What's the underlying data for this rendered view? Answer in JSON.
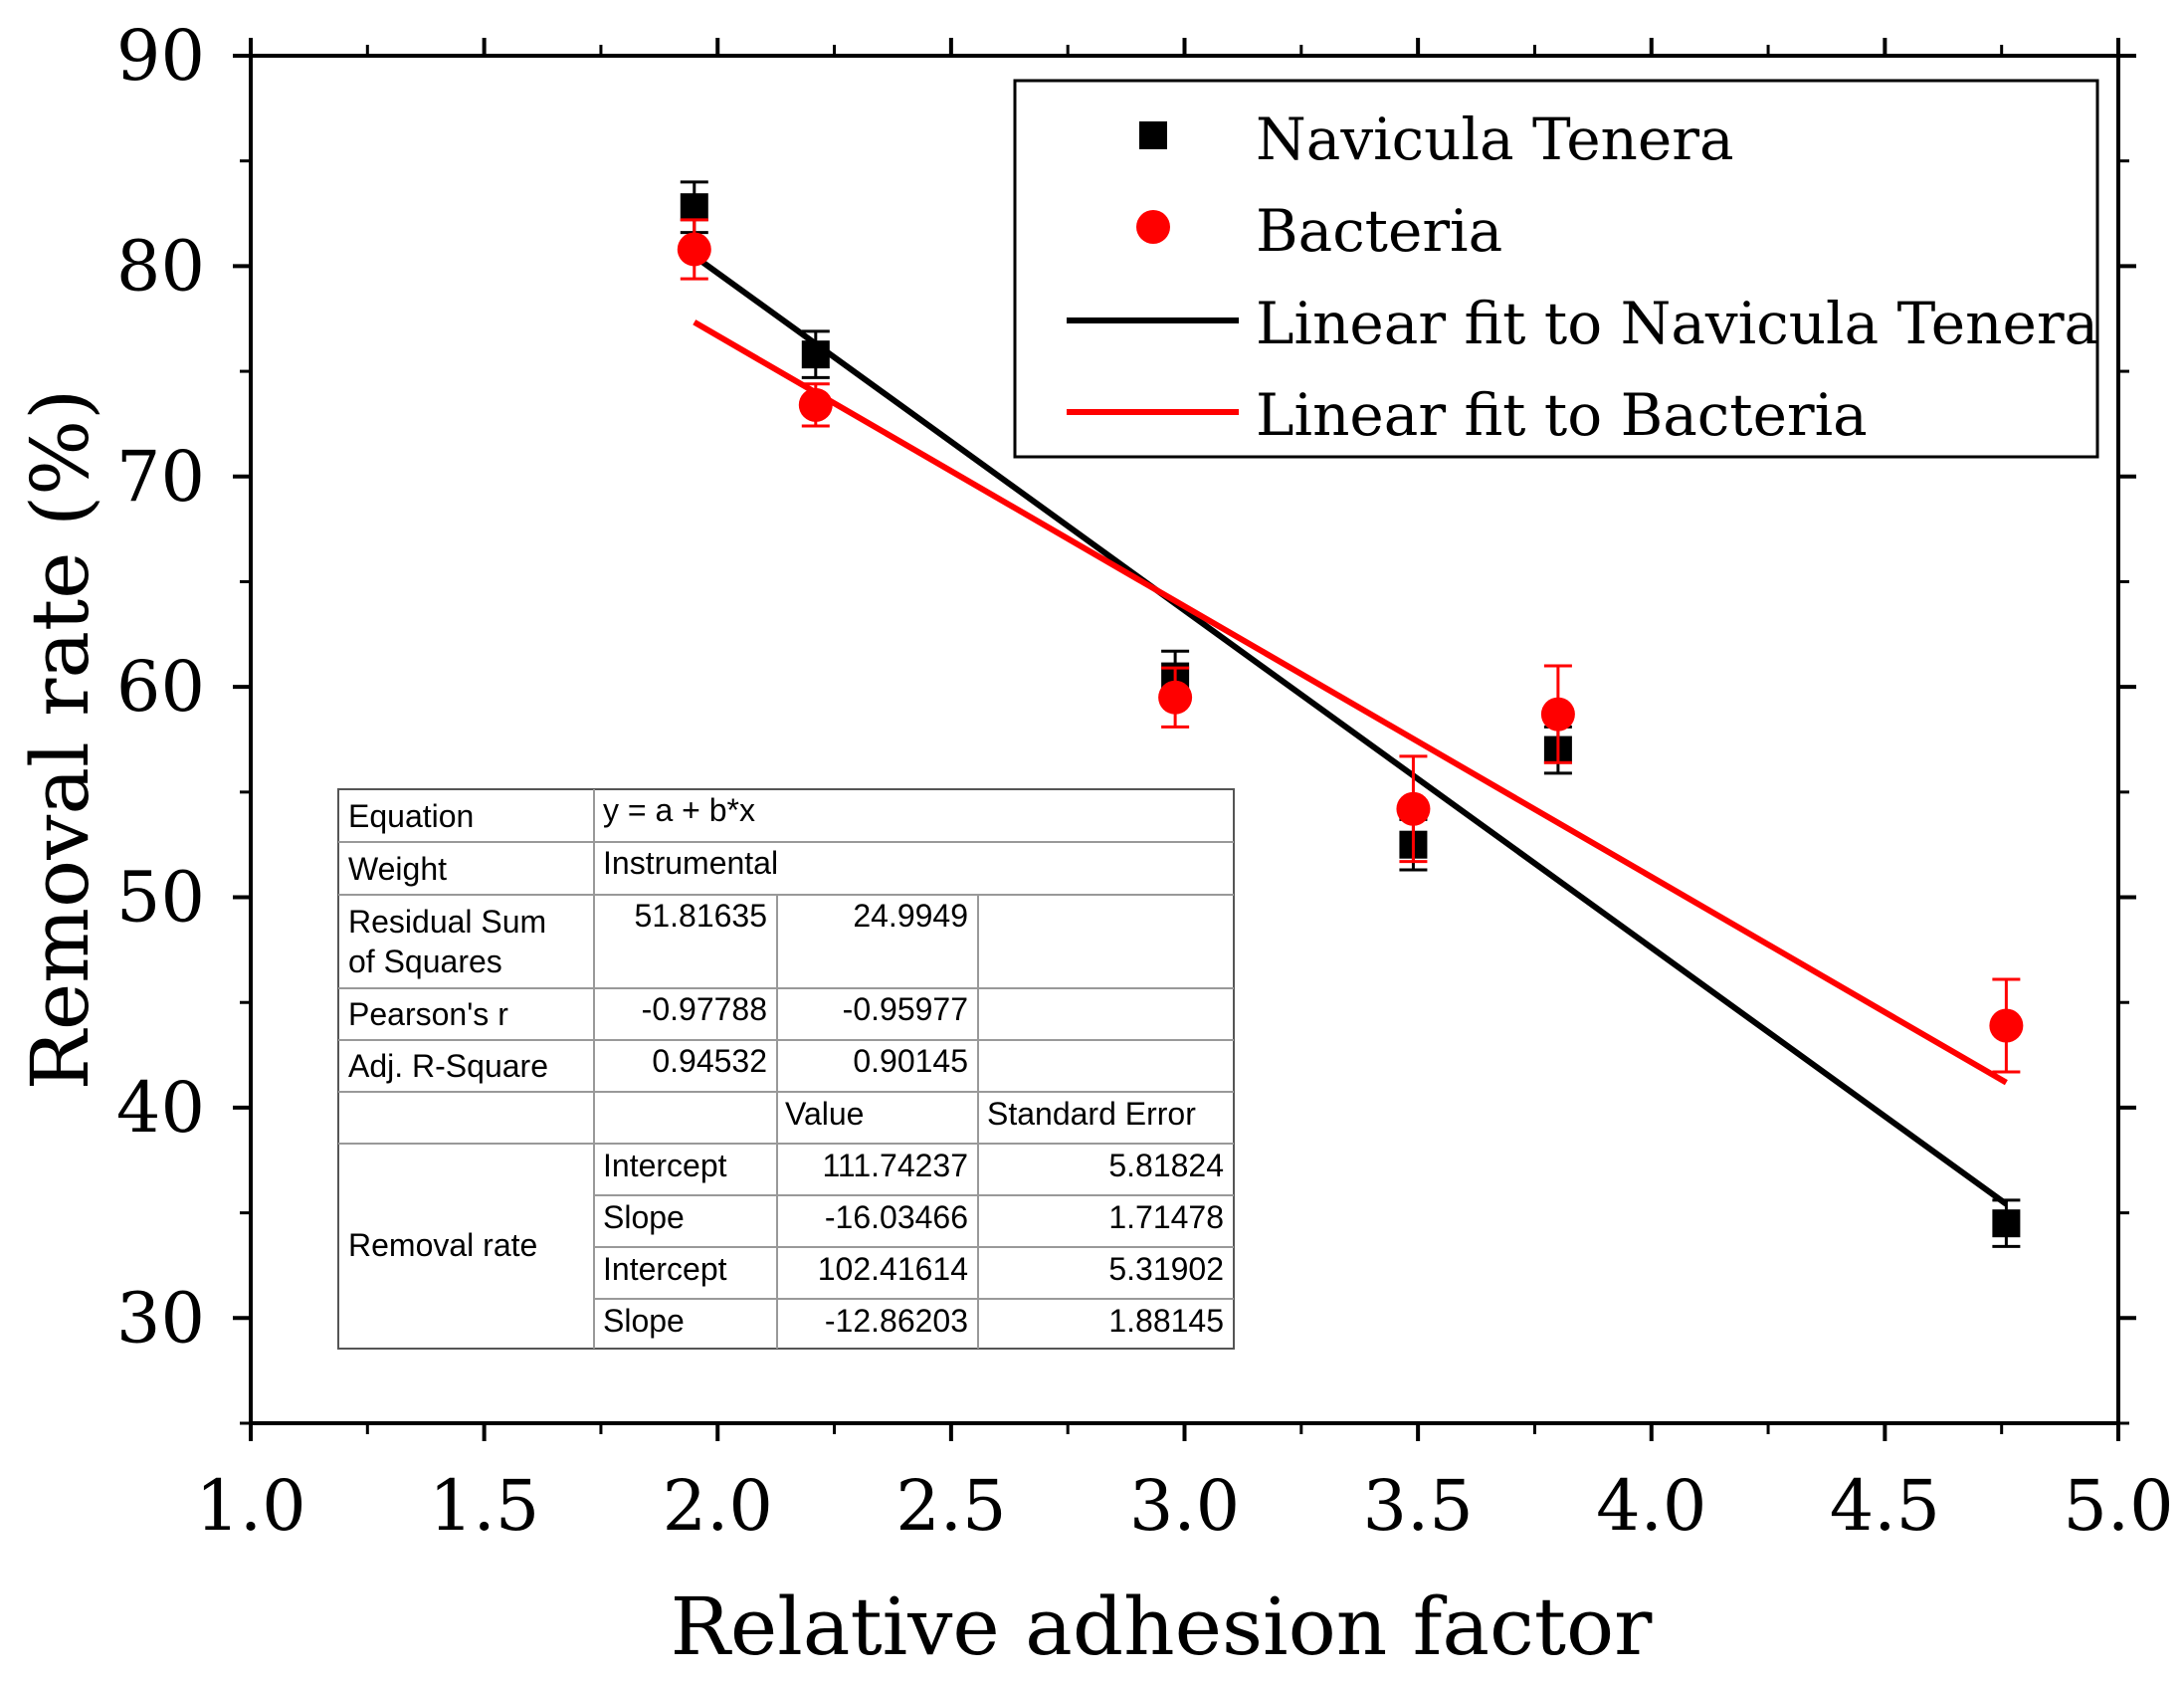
{
  "chart_data": {
    "type": "scatter",
    "xlabel": "Relative adhesion factor",
    "ylabel": "Removal rate (%)",
    "xlim": [
      1.0,
      5.0
    ],
    "ylim": [
      25,
      90
    ],
    "xticks": [
      "1.0",
      "1.5",
      "2.0",
      "2.5",
      "3.0",
      "3.5",
      "4.0",
      "4.5",
      "5.0"
    ],
    "yticks": [
      "30",
      "40",
      "50",
      "60",
      "70",
      "80",
      "90"
    ],
    "legend_position": "top-right",
    "series": [
      {
        "name": "Navicula Tenera",
        "marker": "square",
        "color": "#000000",
        "x": [
          1.95,
          2.21,
          2.98,
          3.49,
          3.8,
          4.76
        ],
        "y": [
          82.8,
          75.8,
          60.5,
          52.5,
          57.0,
          34.5
        ],
        "err": [
          1.2,
          1.1,
          1.2,
          1.2,
          1.1,
          1.1
        ]
      },
      {
        "name": "Bacteria",
        "marker": "circle",
        "color": "#ff0000",
        "x": [
          1.95,
          2.21,
          2.98,
          3.49,
          3.8,
          4.76
        ],
        "y": [
          80.8,
          73.4,
          59.5,
          54.2,
          58.7,
          43.9
        ],
        "err": [
          1.4,
          1.0,
          1.4,
          2.5,
          2.3,
          2.2
        ]
      }
    ],
    "fits": [
      {
        "name": "Linear fit to Navicula Tenera",
        "color": "#000000",
        "intercept": 111.74237,
        "slope": -16.03466,
        "x_range": [
          1.95,
          4.76
        ]
      },
      {
        "name": "Linear fit to Bacteria",
        "color": "#ff0000",
        "intercept": 102.41614,
        "slope": -12.86203,
        "x_range": [
          1.95,
          4.76
        ]
      }
    ],
    "legend": [
      "Navicula Tenera",
      "Bacteria",
      "Linear fit to Navicula Tenera",
      "Linear fit to Bacteria"
    ],
    "fit_table": {
      "equation_label": "Equation",
      "equation": "y = a + b*x",
      "weight_label": "Weight",
      "weight": "Instrumental",
      "rss_label_1": "Residual Sum",
      "rss_label_2": "of Squares",
      "rss": [
        "51.81635",
        "24.9949"
      ],
      "pearson_label": "Pearson's r",
      "pearson": [
        "-0.97788",
        "-0.95977"
      ],
      "adjr_label": "Adj. R-Square",
      "adjr": [
        "0.94532",
        "0.90145"
      ],
      "value_header": "Value",
      "stderr_header": "Standard Error",
      "group_label": "Removal rate",
      "params": [
        {
          "name": "Intercept",
          "value": "111.74237",
          "stderr": "5.81824"
        },
        {
          "name": "Slope",
          "value": "-16.03466",
          "stderr": "1.71478"
        },
        {
          "name": "Intercept",
          "value": "102.41614",
          "stderr": "5.31902"
        },
        {
          "name": "Slope",
          "value": "-12.86203",
          "stderr": "1.88145"
        }
      ]
    }
  }
}
